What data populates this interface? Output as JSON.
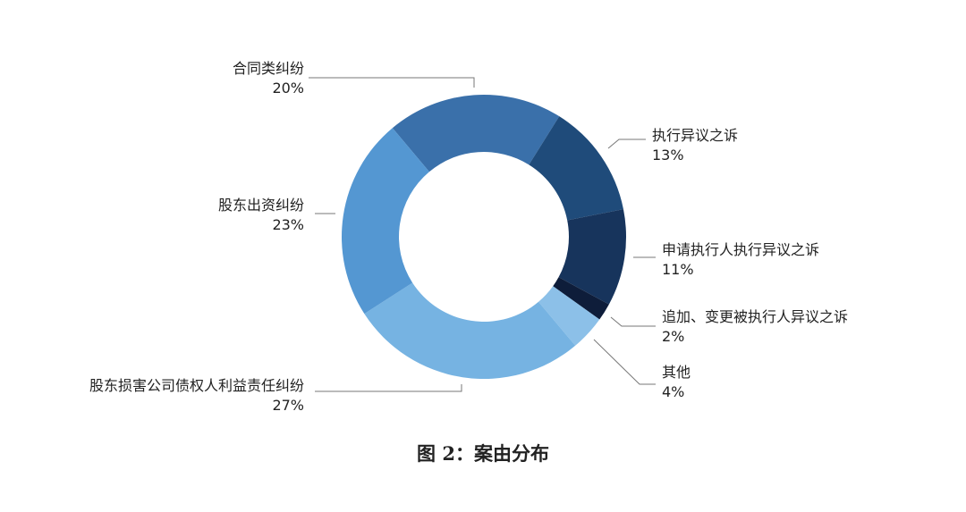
{
  "chart_data": {
    "type": "pie",
    "donut": true,
    "title": "图 2：案由分布",
    "slices": [
      {
        "label": "合同类纠纷",
        "value": 20,
        "display": "20%",
        "color": "#3a70aa"
      },
      {
        "label": "执行异议之诉",
        "value": 13,
        "display": "13%",
        "color": "#1f4b7a"
      },
      {
        "label": "申请执行人执行异议之诉",
        "value": 11,
        "display": "11%",
        "color": "#17345c"
      },
      {
        "label": "追加、变更被执行人异议之诉",
        "value": 2,
        "display": "2%",
        "color": "#0e1d3a"
      },
      {
        "label": "其他",
        "value": 4,
        "display": "4%",
        "color": "#8cc0e8"
      },
      {
        "label": "股东损害公司债权人利益责任纠纷",
        "value": 27,
        "display": "27%",
        "color": "#76b3e2"
      },
      {
        "label": "股东出资纠纷",
        "value": 23,
        "display": "23%",
        "color": "#5497d2"
      }
    ]
  }
}
